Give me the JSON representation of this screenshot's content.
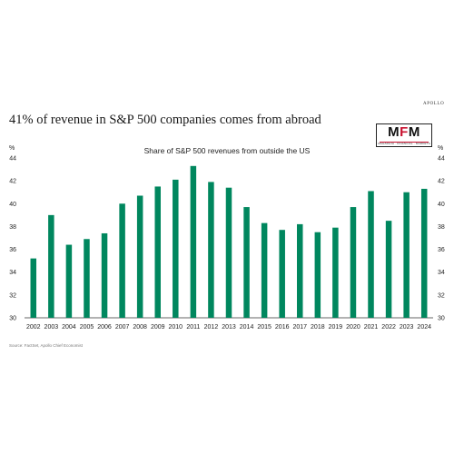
{
  "header": {
    "brand": "APOLLO",
    "headline": "41% of revenue in S&P 500 companies comes from abroad"
  },
  "logo": {
    "main_left": "M",
    "main_mid": "F",
    "main_right": "M",
    "sub": "MAHARAJA · FINANCIAL · MARKETS"
  },
  "footer": {
    "source": "Source: FactSet, Apollo Chief Economist"
  },
  "chart_data": {
    "type": "bar",
    "title": "Share of S&P 500 revenues from outside the US",
    "y_unit_left": "%",
    "y_unit_right": "%",
    "categories": [
      "2002",
      "2003",
      "2004",
      "2005",
      "2006",
      "2007",
      "2008",
      "2009",
      "2010",
      "2011",
      "2012",
      "2013",
      "2014",
      "2015",
      "2016",
      "2017",
      "2018",
      "2019",
      "2020",
      "2021",
      "2022",
      "2023",
      "2024"
    ],
    "values": [
      35.2,
      39.0,
      36.4,
      36.9,
      37.4,
      40.0,
      40.7,
      41.5,
      42.1,
      43.3,
      41.9,
      41.4,
      39.7,
      38.3,
      37.7,
      38.2,
      37.5,
      37.9,
      39.7,
      41.1,
      38.5,
      41.0,
      41.3
    ],
    "ylim": [
      30,
      44
    ],
    "yticks": [
      30,
      32,
      34,
      36,
      38,
      40,
      42,
      44
    ],
    "bar_color": "#00875e",
    "grid": false,
    "legend": "none"
  }
}
